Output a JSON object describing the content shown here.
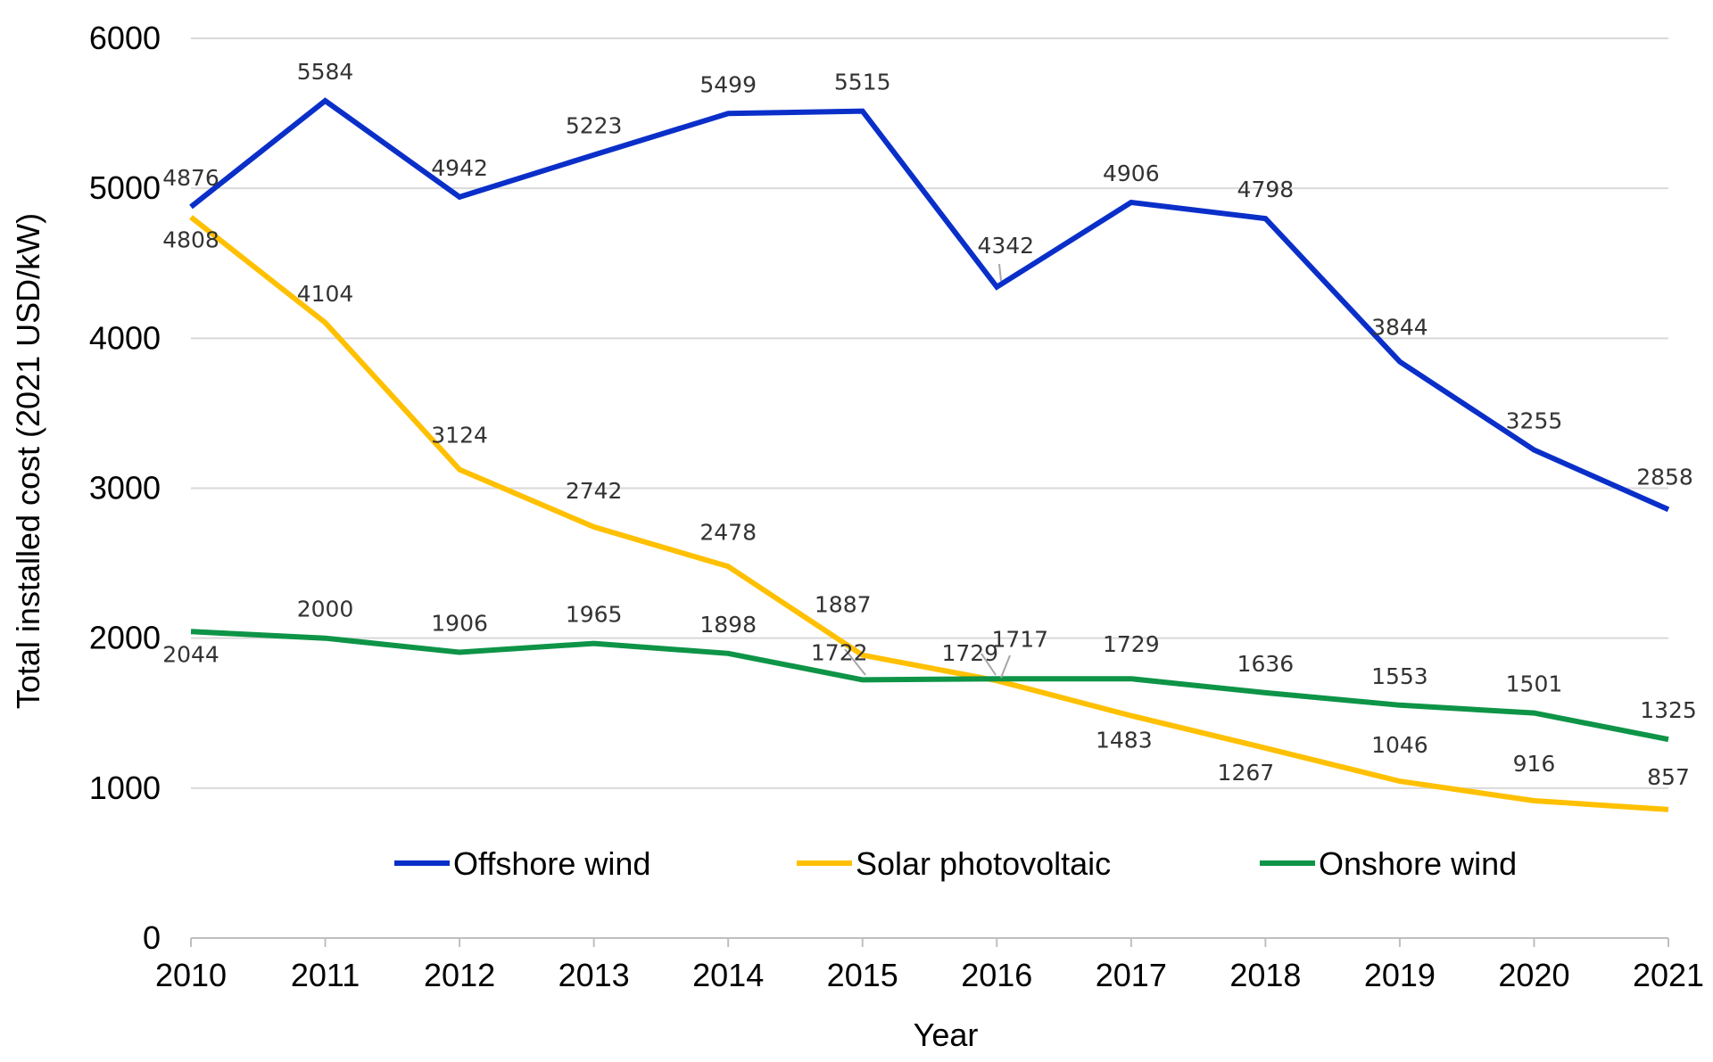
{
  "chart_data": {
    "type": "line",
    "title": "",
    "xlabel": "Year",
    "ylabel": "Total installed cost (2021 USD/kW)",
    "categories": [
      "2010",
      "2011",
      "2012",
      "2013",
      "2014",
      "2015",
      "2016",
      "2017",
      "2018",
      "2019",
      "2020",
      "2021"
    ],
    "ylim": [
      0,
      6000
    ],
    "yticks": [
      0,
      1000,
      2000,
      3000,
      4000,
      5000,
      6000
    ],
    "grid": "horizontal",
    "legend_position": "inside-bottom",
    "series": [
      {
        "name": "Offshore wind",
        "color": "#0a2fc9",
        "values": [
          4876,
          5584,
          4942,
          5223,
          5499,
          5515,
          4342,
          4906,
          4798,
          3844,
          3255,
          2858
        ]
      },
      {
        "name": "Solar photovoltaic",
        "color": "#ffc000",
        "values": [
          4808,
          4104,
          3124,
          2742,
          2478,
          1887,
          1717,
          1483,
          1267,
          1046,
          916,
          857
        ]
      },
      {
        "name": "Onshore wind",
        "color": "#0e9447",
        "values": [
          2044,
          2000,
          1906,
          1965,
          1898,
          1722,
          1729,
          1729,
          1636,
          1553,
          1501,
          1325
        ]
      }
    ]
  }
}
